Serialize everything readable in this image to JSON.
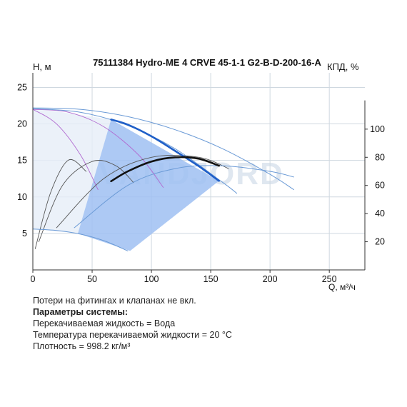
{
  "chart_data": {
    "type": "line",
    "title": "75111384 Hydro-ME 4 CRVE 45-1-1 G2-B-D-200-16-A",
    "ylabel": "H, м",
    "ylabel2": "КПД, %",
    "xlabel": "Q, м³/ч",
    "xlim": [
      0,
      280
    ],
    "ylim": [
      0,
      27
    ],
    "y2lim": [
      0,
      140
    ],
    "xticks": [
      "0",
      "50",
      "100",
      "150",
      "200",
      "250"
    ],
    "xtick_values": [
      0,
      50,
      100,
      150,
      200,
      250
    ],
    "yticks": [
      "5",
      "10",
      "15",
      "20",
      "25"
    ],
    "ytick_values": [
      5,
      10,
      15,
      20,
      25
    ],
    "y2ticks": [
      "20",
      "40",
      "60",
      "80",
      "100"
    ],
    "y2tick_values": [
      20,
      40,
      60,
      80,
      100
    ],
    "grid": true,
    "watermark": "VANDJORD",
    "colors": {
      "grid": "#cfd8e0",
      "region": "#9fc0f2",
      "region_light": "#e6eef8",
      "duty_head": "#1f5fc8",
      "duty_eff": "#111111",
      "thin_blue": "#5b8fd0",
      "thin_purple": "#b06ad0",
      "thin_black": "#555555",
      "axis": "#333333"
    },
    "series": [
      {
        "role": "head-duty",
        "color": "#1f5fc8",
        "width": 2.6,
        "x": [
          66,
          80,
          100,
          120,
          140,
          157
        ],
        "y": [
          20.6,
          19.9,
          18.3,
          16.3,
          14.2,
          12.2
        ]
      },
      {
        "role": "efficiency-duty",
        "axis": "y2",
        "color": "#111111",
        "width": 2.6,
        "x": [
          66,
          80,
          100,
          120,
          140,
          157
        ],
        "y": [
          63,
          70,
          77,
          80,
          79,
          74
        ]
      },
      {
        "role": "head-max",
        "color": "#6a9ad6",
        "width": 1,
        "x": [
          0,
          40,
          80,
          120,
          160,
          200,
          220
        ],
        "y": [
          22.2,
          22.0,
          21.0,
          19.2,
          16.6,
          13.1,
          11.0
        ]
      },
      {
        "role": "head-mid",
        "color": "#6a9ad6",
        "width": 1,
        "x": [
          0,
          40,
          80,
          120,
          160,
          172
        ],
        "y": [
          22.1,
          21.6,
          19.8,
          16.6,
          12.0,
          10.5
        ]
      },
      {
        "role": "head-low",
        "color": "#6a9ad6",
        "width": 1,
        "x": [
          0,
          20,
          40,
          60,
          80
        ],
        "y": [
          5.6,
          5.4,
          4.9,
          4.0,
          2.6
        ]
      },
      {
        "role": "head-inner",
        "color": "#b06ad0",
        "width": 0.9,
        "x": [
          0,
          30,
          60,
          90,
          110
        ],
        "y": [
          22.0,
          21.6,
          19.6,
          15.6,
          11.3
        ]
      },
      {
        "role": "head-inner-2",
        "color": "#b06ad0",
        "width": 0.9,
        "x": [
          0,
          20,
          40,
          55
        ],
        "y": [
          22.0,
          20.0,
          15.8,
          11.0
        ]
      },
      {
        "role": "eff-max",
        "axis": "y2",
        "color": "#6a9ad6",
        "width": 1,
        "x": [
          35,
          80,
          120,
          160,
          200,
          220
        ],
        "y": [
          30,
          60,
          72,
          74,
          70,
          66
        ]
      },
      {
        "role": "eff-mid",
        "axis": "y2",
        "color": "#555555",
        "width": 0.9,
        "x": [
          20,
          60,
          100,
          140,
          165
        ],
        "y": [
          30,
          65,
          80,
          80,
          72
        ]
      },
      {
        "role": "eff-low",
        "axis": "y2",
        "color": "#555555",
        "width": 0.9,
        "x": [
          5,
          25,
          50,
          70,
          85
        ],
        "y": [
          20,
          60,
          77,
          74,
          62
        ]
      },
      {
        "role": "eff-min",
        "axis": "y2",
        "color": "#555555",
        "width": 0.9,
        "x": [
          2,
          15,
          30,
          45
        ],
        "y": [
          15,
          55,
          78,
          70
        ]
      }
    ],
    "operating_region": {
      "x": [
        66,
        157,
        82,
        38
      ],
      "y": [
        20.6,
        12.2,
        2.6,
        5.0
      ]
    },
    "operating_region_light": {
      "x": [
        0,
        66,
        38,
        0
      ],
      "y": [
        22.2,
        20.6,
        5.0,
        5.6
      ]
    }
  },
  "notes": {
    "line1": "Потери на фитингах и клапанах не вкл.",
    "line2": "Параметры системы:",
    "line3": "Перекачиваемая жидкость = Вода",
    "line4": "Температура перекачиваемой жидкости = 20 °C",
    "line5": "Плотность = 998.2 кг/м³"
  }
}
